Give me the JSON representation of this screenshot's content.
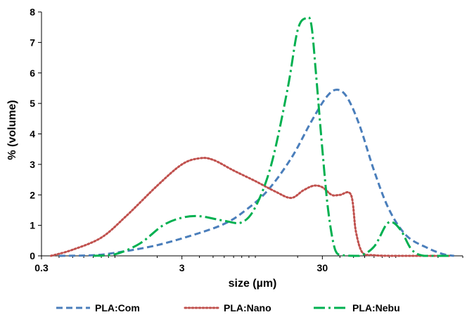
{
  "chart_data": {
    "type": "line",
    "title": "",
    "xlabel": "size (µm)",
    "ylabel": "% (volume)",
    "x_scale": "log",
    "xlim": [
      0.3,
      300
    ],
    "ylim": [
      0,
      8
    ],
    "x_ticks": [
      {
        "value": 0.3,
        "label": "0.3"
      },
      {
        "value": 3,
        "label": "3"
      },
      {
        "value": 30,
        "label": "30"
      }
    ],
    "y_ticks": [
      {
        "value": 0,
        "label": "0"
      },
      {
        "value": 1,
        "label": "1"
      },
      {
        "value": 2,
        "label": "2"
      },
      {
        "value": 3,
        "label": "3"
      },
      {
        "value": 4,
        "label": "4"
      },
      {
        "value": 5,
        "label": "5"
      },
      {
        "value": 6,
        "label": "6"
      },
      {
        "value": 7,
        "label": "7"
      },
      {
        "value": 8,
        "label": "8"
      }
    ],
    "grid": false,
    "legend_position": "bottom",
    "series": [
      {
        "name": "PLA:Com",
        "color": "#4A7EBB",
        "dash": "dashed",
        "points": [
          [
            0.4,
            0
          ],
          [
            0.7,
            0.02
          ],
          [
            1.0,
            0.1
          ],
          [
            2.0,
            0.35
          ],
          [
            4.0,
            0.75
          ],
          [
            6.0,
            1.05
          ],
          [
            8.0,
            1.4
          ],
          [
            12.0,
            2.1
          ],
          [
            18.0,
            3.2
          ],
          [
            25.0,
            4.4
          ],
          [
            32.0,
            5.2
          ],
          [
            38.0,
            5.45
          ],
          [
            45.0,
            5.2
          ],
          [
            55.0,
            4.3
          ],
          [
            70.0,
            2.8
          ],
          [
            90.0,
            1.5
          ],
          [
            120.0,
            0.65
          ],
          [
            170.0,
            0.25
          ],
          [
            220.0,
            0.05
          ],
          [
            260.0,
            0
          ]
        ]
      },
      {
        "name": "PLA:Nano",
        "color": "#C0504D",
        "dash": "dotted",
        "points": [
          [
            0.35,
            0
          ],
          [
            0.5,
            0.2
          ],
          [
            0.8,
            0.6
          ],
          [
            1.2,
            1.3
          ],
          [
            2.0,
            2.3
          ],
          [
            3.0,
            3.0
          ],
          [
            4.0,
            3.2
          ],
          [
            5.0,
            3.15
          ],
          [
            7.0,
            2.8
          ],
          [
            10.0,
            2.45
          ],
          [
            14.0,
            2.1
          ],
          [
            18.0,
            1.9
          ],
          [
            22.0,
            2.15
          ],
          [
            26.0,
            2.3
          ],
          [
            30.0,
            2.25
          ],
          [
            35.0,
            2.0
          ],
          [
            40.0,
            2.0
          ],
          [
            48.0,
            2.0
          ],
          [
            52.0,
            0.8
          ],
          [
            58.0,
            0.1
          ],
          [
            70.0,
            0.02
          ],
          [
            100.0,
            0
          ],
          [
            240.0,
            0
          ]
        ]
      },
      {
        "name": "PLA:Nebu",
        "color": "#00B050",
        "dash": "dash-dot",
        "points": [
          [
            0.7,
            0
          ],
          [
            1.0,
            0.05
          ],
          [
            1.5,
            0.4
          ],
          [
            2.2,
            1.0
          ],
          [
            3.0,
            1.25
          ],
          [
            4.0,
            1.3
          ],
          [
            6.0,
            1.15
          ],
          [
            8.0,
            1.1
          ],
          [
            10.0,
            1.6
          ],
          [
            13.0,
            3.0
          ],
          [
            17.0,
            5.5
          ],
          [
            20.0,
            7.4
          ],
          [
            23.0,
            7.8
          ],
          [
            25.0,
            7.6
          ],
          [
            27.0,
            6.0
          ],
          [
            30.0,
            3.5
          ],
          [
            33.0,
            1.5
          ],
          [
            37.0,
            0.2
          ],
          [
            42.0,
            0.02
          ],
          [
            55.0,
            0
          ],
          [
            70.0,
            0.3
          ],
          [
            85.0,
            1.0
          ],
          [
            95.0,
            1.1
          ],
          [
            110.0,
            0.8
          ],
          [
            130.0,
            0.2
          ],
          [
            160.0,
            0
          ],
          [
            240.0,
            0
          ]
        ]
      }
    ]
  }
}
